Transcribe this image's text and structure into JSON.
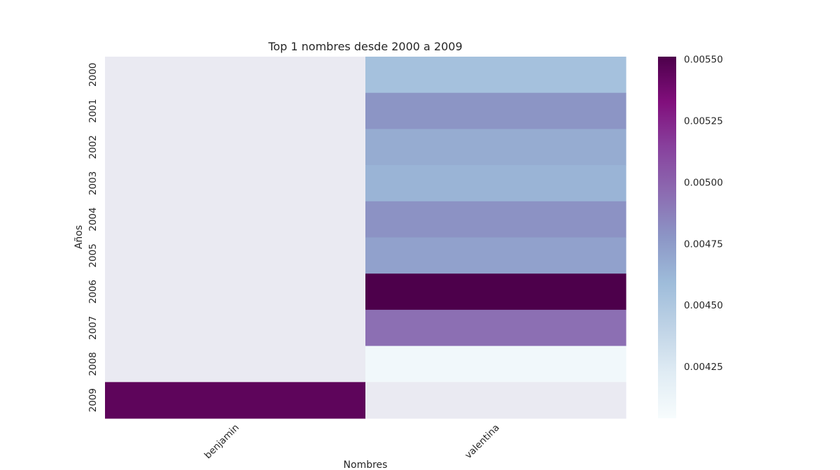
{
  "chart_data": {
    "type": "heatmap",
    "title": "Top 1 nombres desde 2000 a 2009",
    "xlabel": "Nombres",
    "ylabel": "Años",
    "columns": [
      "benjamin",
      "valentina"
    ],
    "rows": [
      "2000",
      "2001",
      "2002",
      "2003",
      "2004",
      "2005",
      "2006",
      "2007",
      "2008",
      "2009"
    ],
    "values": [
      [
        null,
        0.00455
      ],
      [
        null,
        0.00478
      ],
      [
        null,
        0.00467
      ],
      [
        null,
        0.00463
      ],
      [
        null,
        0.00479
      ],
      [
        null,
        0.00472
      ],
      [
        null,
        0.00551
      ],
      [
        null,
        0.00494
      ],
      [
        null,
        0.00409
      ],
      [
        0.00545,
        null
      ]
    ],
    "colorbar": {
      "vmin": 0.00404,
      "vmax": 0.00551,
      "ticks": [
        0.00425,
        0.0045,
        0.00475,
        0.005,
        0.00525,
        0.0055
      ],
      "tick_labels": [
        "0.00425",
        "0.00450",
        "0.00475",
        "0.00500",
        "0.00525",
        "0.00550"
      ],
      "colormap": "BuPu",
      "stops": [
        "#f7fcfd",
        "#e0ecf4",
        "#bfd3e6",
        "#9ebcda",
        "#8c96c6",
        "#8c6bb1",
        "#88419d",
        "#810f7c",
        "#4d004b"
      ]
    },
    "missing_color": "#eaeaf2",
    "grid": false,
    "legend": "colorbar-right"
  }
}
